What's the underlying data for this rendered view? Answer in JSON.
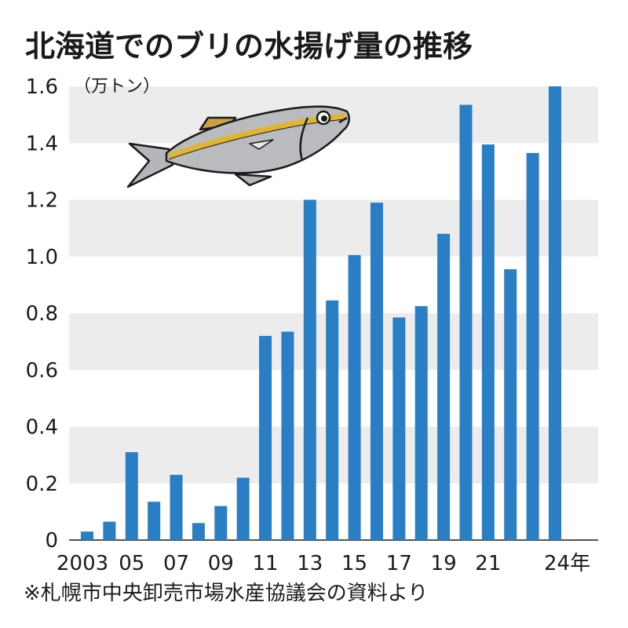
{
  "title": "北海道でのブリの水揚げ量の推移",
  "source_note": "※札幌市中央卸売市場水産協議会の資料より",
  "chart_data": {
    "type": "bar",
    "title": "北海道でのブリの水揚げ量の推移",
    "unit_label": "（万トン）",
    "ylim": [
      0,
      1.6
    ],
    "yticks": [
      "0",
      "0.2",
      "0.4",
      "0.6",
      "0.8",
      "1.0",
      "1.2",
      "1.4",
      "1.6"
    ],
    "grid": "alternating horizontal bands",
    "bar_color": "#2a7fc4",
    "band_color": "#ececec",
    "categories": [
      "2003",
      "2004",
      "2005",
      "2006",
      "2007",
      "2008",
      "2009",
      "2010",
      "2011",
      "2012",
      "2013",
      "2014",
      "2015",
      "2016",
      "2017",
      "2018",
      "2019",
      "2020",
      "2021",
      "2022",
      "2023",
      "2024"
    ],
    "x_tick_labels": [
      "2003",
      "",
      "05",
      "",
      "07",
      "",
      "09",
      "",
      "11",
      "",
      "13",
      "",
      "15",
      "",
      "17",
      "",
      "19",
      "",
      "21",
      "",
      "",
      "24年"
    ],
    "values": [
      0.03,
      0.065,
      0.31,
      0.135,
      0.23,
      0.06,
      0.12,
      0.22,
      0.72,
      0.735,
      1.2,
      0.845,
      1.005,
      1.19,
      0.785,
      0.825,
      1.08,
      1.535,
      1.395,
      0.955,
      1.365,
      1.6
    ]
  },
  "illustration": {
    "name": "yellowtail-fish-icon"
  }
}
